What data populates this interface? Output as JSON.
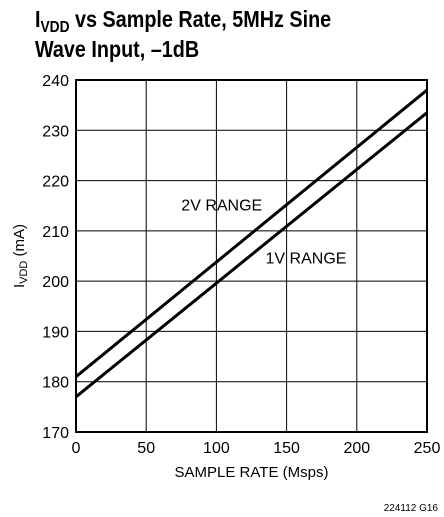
{
  "title": {
    "line1_prefix": "I",
    "line1_sub": "VDD",
    "line1_rest": " vs Sample Rate, 5MHz Sine",
    "line2": "Wave Input, –1dB"
  },
  "footnote": "224112 G16",
  "chart_data": {
    "type": "line",
    "xlabel": "SAMPLE RATE (Msps)",
    "ylabel_prefix": "I",
    "ylabel_sub": "VDD",
    "ylabel_suffix": " (mA)",
    "xlim": [
      0,
      250
    ],
    "ylim": [
      170,
      240
    ],
    "xticks": [
      0,
      50,
      100,
      150,
      200,
      250
    ],
    "yticks": [
      170,
      180,
      190,
      200,
      210,
      220,
      230,
      240
    ],
    "grid": true,
    "series": [
      {
        "name": "2V RANGE",
        "x": [
          0,
          250
        ],
        "y": [
          181,
          238
        ]
      },
      {
        "name": "1V RANGE",
        "x": [
          0,
          250
        ],
        "y": [
          177,
          233.5
        ]
      }
    ],
    "annotations": [
      {
        "text": "2V RANGE",
        "x": 75,
        "y": 214
      },
      {
        "text": "1V RANGE",
        "x": 135,
        "y": 203.5
      }
    ]
  }
}
